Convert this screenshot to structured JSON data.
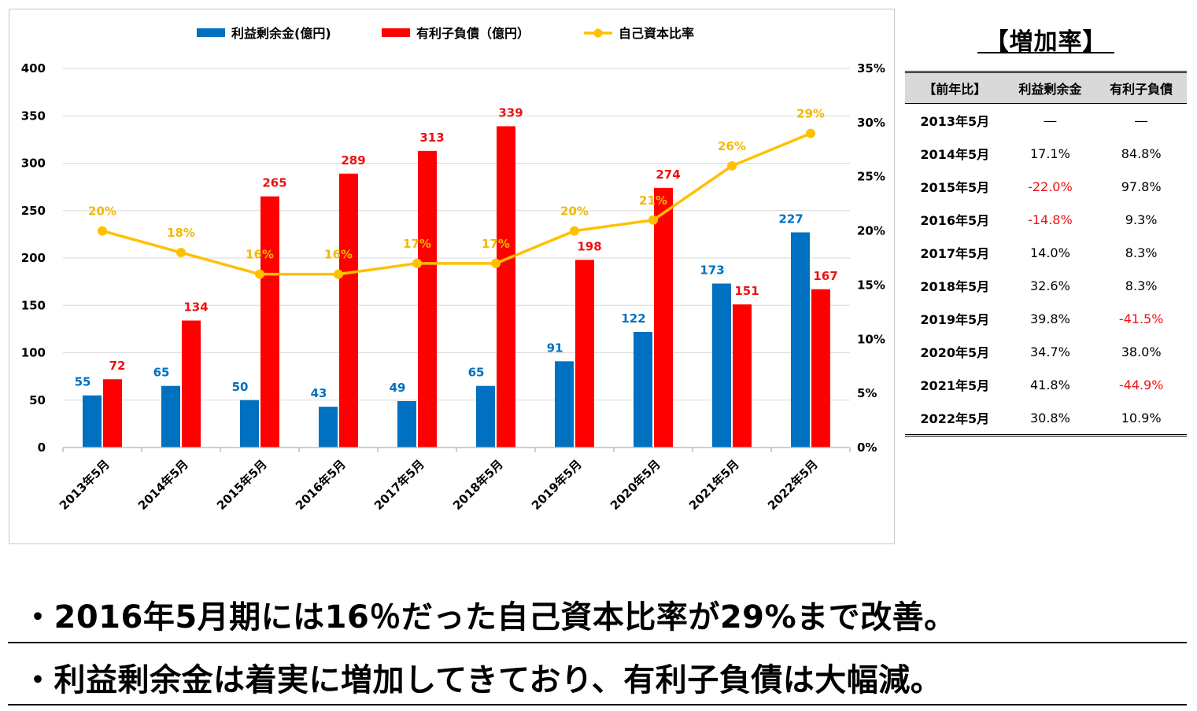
{
  "chart_data": {
    "type": "bar+line",
    "categories": [
      "2013年5月",
      "2014年5月",
      "2015年5月",
      "2016年5月",
      "2017年5月",
      "2018年5月",
      "2019年5月",
      "2020年5月",
      "2021年5月",
      "2022年5月"
    ],
    "series": [
      {
        "name": "利益剰余金(億円)",
        "type": "bar",
        "axis": "left",
        "color": "#0070c0",
        "label_color": "#0070c0",
        "values": [
          55,
          65,
          50,
          43,
          49,
          65,
          91,
          122,
          173,
          227
        ]
      },
      {
        "name": "有利子負債（億円）",
        "type": "bar",
        "axis": "left",
        "color": "#ff0000",
        "label_color": "#ee1111",
        "values": [
          72,
          134,
          265,
          289,
          313,
          339,
          198,
          274,
          151,
          167
        ]
      },
      {
        "name": "自己資本比率",
        "type": "line",
        "axis": "right",
        "color": "#ffc000",
        "label_color": "#f2b800",
        "values": [
          20,
          18,
          16,
          16,
          17,
          17,
          20,
          21,
          26,
          29
        ],
        "labels": [
          "20%",
          "18%",
          "16%",
          "16%",
          "17%",
          "17%",
          "20%",
          "21%",
          "26%",
          "29%"
        ]
      }
    ],
    "y_left": {
      "range": [
        0,
        400
      ],
      "ticks": [
        0,
        50,
        100,
        150,
        200,
        250,
        300,
        350,
        400
      ]
    },
    "y_right": {
      "range": [
        0,
        35
      ],
      "ticks": [
        "0%",
        "5%",
        "10%",
        "15%",
        "20%",
        "25%",
        "30%",
        "35%"
      ]
    },
    "grid": true,
    "legend_position": "top"
  },
  "rate_panel": {
    "title": "【増加率】",
    "headers": [
      "【前年比】",
      "利益剰余金",
      "有利子負債"
    ],
    "rows": [
      {
        "year": "2013年5月",
        "retained": "―",
        "debt": "―"
      },
      {
        "year": "2014年5月",
        "retained": "17.1%",
        "debt": "84.8%"
      },
      {
        "year": "2015年5月",
        "retained": "-22.0%",
        "debt": "97.8%"
      },
      {
        "year": "2016年5月",
        "retained": "-14.8%",
        "debt": "9.3%"
      },
      {
        "year": "2017年5月",
        "retained": "14.0%",
        "debt": "8.3%"
      },
      {
        "year": "2018年5月",
        "retained": "32.6%",
        "debt": "8.3%"
      },
      {
        "year": "2019年5月",
        "retained": "39.8%",
        "debt": "-41.5%"
      },
      {
        "year": "2020年5月",
        "retained": "34.7%",
        "debt": "38.0%"
      },
      {
        "year": "2021年5月",
        "retained": "41.8%",
        "debt": "-44.9%"
      },
      {
        "year": "2022年5月",
        "retained": "30.8%",
        "debt": "10.9%"
      }
    ],
    "negative_color": "#ee1111"
  },
  "bullets": [
    "・2016年5月期には16％だった自己資本比率が29%まで改善。",
    "・利益剰余金は着実に増加してきており、有利子負債は大幅減。"
  ]
}
